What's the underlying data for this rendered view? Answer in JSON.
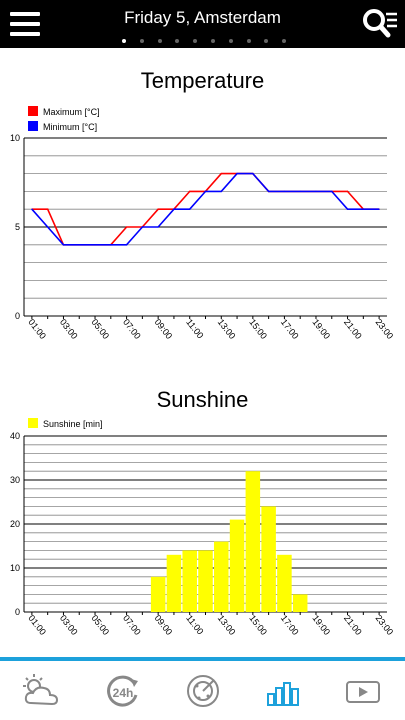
{
  "header": {
    "title": "Friday 5, Amsterdam",
    "menu_icon": "hamburger-menu-icon",
    "search_icon": "search-list-icon",
    "page_dots": {
      "count": 10,
      "active": 0
    }
  },
  "nav": {
    "items": [
      {
        "name": "weather-icon",
        "active": false
      },
      {
        "name": "24h-icon",
        "active": false
      },
      {
        "name": "radar-icon",
        "active": false
      },
      {
        "name": "charts-icon",
        "active": true
      },
      {
        "name": "video-icon",
        "active": false
      }
    ],
    "accent": "#1da1db",
    "inactive": "#888888"
  },
  "chart_data": [
    {
      "type": "line",
      "title": "Temperature",
      "ylim": [
        0,
        10
      ],
      "yticks": [
        "0",
        "5",
        "10"
      ],
      "xticks": [
        "01:00",
        "03:00",
        "05:00",
        "07:00",
        "09:00",
        "11:00",
        "13:00",
        "15:00",
        "17:00",
        "19:00",
        "21:00",
        "23:00"
      ],
      "x": [
        "01:00",
        "02:00",
        "03:00",
        "04:00",
        "05:00",
        "06:00",
        "07:00",
        "08:00",
        "09:00",
        "10:00",
        "11:00",
        "12:00",
        "13:00",
        "14:00",
        "15:00",
        "16:00",
        "17:00",
        "18:00",
        "19:00",
        "20:00",
        "21:00",
        "22:00",
        "23:00"
      ],
      "series": [
        {
          "name": "Maximum [°C]",
          "color": "#ff0000",
          "values": [
            6,
            6,
            4,
            4,
            4,
            4,
            5,
            5,
            6,
            6,
            7,
            7,
            8,
            8,
            8,
            7,
            7,
            7,
            7,
            7,
            7,
            6,
            6
          ]
        },
        {
          "name": "Minimum [°C]",
          "color": "#0000ff",
          "values": [
            6,
            5,
            4,
            4,
            4,
            4,
            4,
            5,
            5,
            6,
            6,
            7,
            7,
            8,
            8,
            7,
            7,
            7,
            7,
            7,
            6,
            6,
            6
          ]
        }
      ],
      "grid": true,
      "legend": "top-left"
    },
    {
      "type": "bar",
      "title": "Sunshine",
      "ylim": [
        0,
        40
      ],
      "yticks": [
        "0",
        "10",
        "20",
        "30",
        "40"
      ],
      "xticks": [
        "01:00",
        "03:00",
        "05:00",
        "07:00",
        "09:00",
        "11:00",
        "13:00",
        "15:00",
        "17:00",
        "19:00",
        "21:00",
        "23:00"
      ],
      "x": [
        "01:00",
        "02:00",
        "03:00",
        "04:00",
        "05:00",
        "06:00",
        "07:00",
        "08:00",
        "09:00",
        "10:00",
        "11:00",
        "12:00",
        "13:00",
        "14:00",
        "15:00",
        "16:00",
        "17:00",
        "18:00",
        "19:00",
        "20:00",
        "21:00",
        "22:00",
        "23:00"
      ],
      "series": [
        {
          "name": "Sunshine [min]",
          "color": "#ffff00",
          "values": [
            0,
            0,
            0,
            0,
            0,
            0,
            0,
            0,
            8,
            13,
            14,
            14,
            16,
            21,
            32,
            24,
            13,
            4,
            0,
            0,
            0,
            0,
            0
          ]
        }
      ],
      "grid": true,
      "legend": "top-left"
    }
  ]
}
